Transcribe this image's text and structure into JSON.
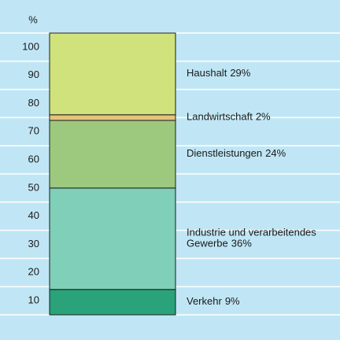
{
  "chart_data": {
    "type": "stacked_bar",
    "ylabel": "%",
    "ylim": [
      0,
      100
    ],
    "yticks": [
      10,
      20,
      30,
      40,
      50,
      60,
      70,
      80,
      90,
      100
    ],
    "grid": true,
    "series": [
      {
        "name": "Verkehr",
        "color": "#2aa27a",
        "values": [
          9
        ],
        "value_labels": [
          "9%"
        ]
      },
      {
        "name": "Industrie und verarbeitendes Gewerbe",
        "color": "#80cfb8",
        "values": [
          36
        ],
        "value_labels": [
          "36%"
        ]
      },
      {
        "name": "Dienstleistungen",
        "color": "#9dc97f",
        "values": [
          24
        ],
        "value_labels": [
          "24%"
        ]
      },
      {
        "name": "Landwirtschaft",
        "color": "#e6c27c",
        "values": [
          2
        ],
        "value_labels": [
          "2%"
        ]
      },
      {
        "name": "Haushalt",
        "color": "#d0e27c",
        "values": [
          29
        ],
        "value_labels": [
          "29%"
        ]
      }
    ]
  }
}
